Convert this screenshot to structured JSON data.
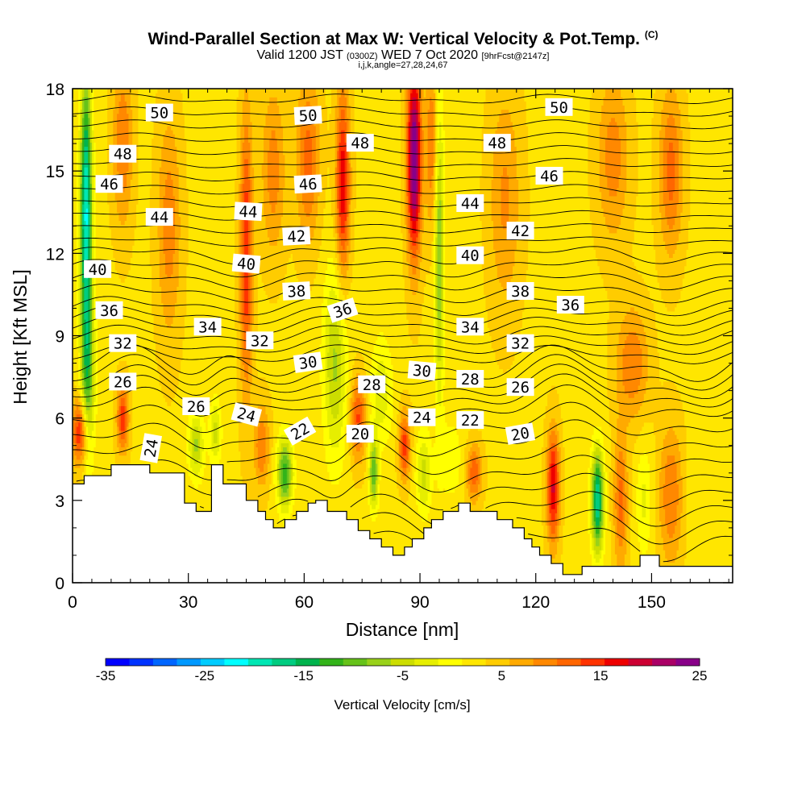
{
  "header": {
    "title": "Wind-Parallel Section at Max W: Vertical Velocity & Pot.Temp.",
    "title_mark": "(C)",
    "valid_prefix": "Valid 1200 JST",
    "valid_utc": "(0300Z)",
    "valid_date": "WED 7 Oct 2020",
    "forecast": "[9hrFcst@2147z]",
    "indices": "i,j,k,angle=27,28,24,67"
  },
  "chart_data": {
    "type": "heatmap",
    "xlabel": "Distance [nm]",
    "ylabel": "Height [Kft MSL]",
    "xlim": [
      0,
      171
    ],
    "ylim": [
      0,
      18
    ],
    "x_ticks": [
      0,
      30,
      60,
      90,
      120,
      150
    ],
    "y_ticks": [
      0,
      3,
      6,
      9,
      12,
      15,
      18
    ],
    "grid": false,
    "colorbar": {
      "label": "Vertical Velocity [cm/s]",
      "range": [
        -35,
        25
      ],
      "step": 2.5,
      "tick_values": [
        -35,
        -25,
        -15,
        -5,
        5,
        15,
        25
      ],
      "tick_labels": [
        "-35",
        "-25",
        "-15",
        "-5",
        "5",
        "15",
        "25"
      ],
      "colors": [
        "#0000ff",
        "#0033ff",
        "#0066ff",
        "#0099ff",
        "#00ccff",
        "#00ffff",
        "#00e6b3",
        "#00cc80",
        "#00b34d",
        "#33b31a",
        "#66c21a",
        "#99d11a",
        "#ccdd00",
        "#e6ee00",
        "#ffff00",
        "#ffe600",
        "#ffcc00",
        "#ffaa00",
        "#ff8800",
        "#ff6600",
        "#ff3300",
        "#ee0000",
        "#cc0033",
        "#aa0066",
        "#880088"
      ],
      "placement": "bottom"
    },
    "velocity_features": [
      {
        "x": 3.5,
        "z": 13.5,
        "value": -25,
        "wx": 1.5,
        "wz": 5
      },
      {
        "x": 4,
        "z": 7.5,
        "value": -12,
        "wx": 1.8,
        "wz": 3
      },
      {
        "x": 13,
        "z": 16,
        "value": 8,
        "wx": 2.5,
        "wz": 3
      },
      {
        "x": 2,
        "z": 5.5,
        "value": 14,
        "wx": 2,
        "wz": 1.2
      },
      {
        "x": 13,
        "z": 6,
        "value": 12,
        "wx": 1.5,
        "wz": 1.2
      },
      {
        "x": 25,
        "z": 13,
        "value": 7,
        "wx": 3,
        "wz": 4
      },
      {
        "x": 32,
        "z": 5,
        "value": -10,
        "wx": 2,
        "wz": 1.2
      },
      {
        "x": 37,
        "z": 5.5,
        "value": -8,
        "wx": 1.5,
        "wz": 1.2
      },
      {
        "x": 45,
        "z": 12,
        "value": 13,
        "wx": 1.6,
        "wz": 5
      },
      {
        "x": 49,
        "z": 5,
        "value": 8,
        "wx": 2,
        "wz": 1.5
      },
      {
        "x": 55,
        "z": 4,
        "value": -16,
        "wx": 2,
        "wz": 1.3
      },
      {
        "x": 52,
        "z": 15,
        "value": 7,
        "wx": 3,
        "wz": 3
      },
      {
        "x": 61,
        "z": 15.5,
        "value": 9,
        "wx": 3,
        "wz": 3
      },
      {
        "x": 68,
        "z": 8,
        "value": -10,
        "wx": 3,
        "wz": 3.5
      },
      {
        "x": 70,
        "z": 14.5,
        "value": 15,
        "wx": 1.8,
        "wz": 3.5
      },
      {
        "x": 74,
        "z": 6,
        "value": 11,
        "wx": 2,
        "wz": 1.5
      },
      {
        "x": 78,
        "z": 4,
        "value": -14,
        "wx": 1.2,
        "wz": 1.3
      },
      {
        "x": 80,
        "z": 7,
        "value": -6,
        "wx": 3,
        "wz": 2
      },
      {
        "x": 88.5,
        "z": 15.5,
        "value": 24,
        "wx": 1.8,
        "wz": 3.5
      },
      {
        "x": 86,
        "z": 5,
        "value": 12,
        "wx": 1.5,
        "wz": 1.2
      },
      {
        "x": 91,
        "z": 4,
        "value": -8,
        "wx": 2,
        "wz": 1.5
      },
      {
        "x": 95,
        "z": 12,
        "value": -12,
        "wx": 1.2,
        "wz": 5.5
      },
      {
        "x": 93,
        "z": 16,
        "value": 8,
        "wx": 1.5,
        "wz": 3
      },
      {
        "x": 98,
        "z": 4.5,
        "value": -4,
        "wx": 3,
        "wz": 1.5
      },
      {
        "x": 104,
        "z": 4,
        "value": 10,
        "wx": 2,
        "wz": 1
      },
      {
        "x": 112,
        "z": 14,
        "value": 6,
        "wx": 4,
        "wz": 4
      },
      {
        "x": 124.5,
        "z": 3.5,
        "value": 16,
        "wx": 1.6,
        "wz": 2
      },
      {
        "x": 136,
        "z": 3,
        "value": -22,
        "wx": 1.6,
        "wz": 1.8
      },
      {
        "x": 142,
        "z": 3,
        "value": 9,
        "wx": 1.8,
        "wz": 2.5
      },
      {
        "x": 148,
        "z": 3,
        "value": -5,
        "wx": 2,
        "wz": 2
      },
      {
        "x": 155,
        "z": 3.2,
        "value": 8,
        "wx": 3,
        "wz": 2.5
      },
      {
        "x": 162,
        "z": 3,
        "value": -2,
        "wx": 3,
        "wz": 2
      },
      {
        "x": 140,
        "z": 15.5,
        "value": 7,
        "wx": 4,
        "wz": 3
      },
      {
        "x": 155,
        "z": 15,
        "value": 9,
        "wx": 3,
        "wz": 3
      },
      {
        "x": 145,
        "z": 8,
        "value": 8,
        "wx": 4,
        "wz": 2
      }
    ],
    "terrain": {
      "x": [
        0,
        3,
        3,
        10,
        10,
        20,
        20,
        29,
        29,
        32,
        32,
        36,
        36,
        39,
        39,
        45,
        45,
        48,
        48,
        50,
        50,
        52,
        52,
        55,
        55,
        58,
        58,
        61,
        61,
        63,
        63,
        66,
        66,
        71,
        71,
        74,
        74,
        77,
        77,
        80,
        80,
        83,
        83,
        86,
        86,
        88,
        88,
        91,
        91,
        93,
        93,
        96,
        96,
        100,
        100,
        103,
        103,
        110,
        110,
        114,
        114,
        117,
        117,
        119,
        119,
        121,
        121,
        124,
        124,
        127,
        127,
        132,
        132,
        147,
        147,
        152,
        152,
        171
      ],
      "z": [
        3.6,
        3.6,
        3.9,
        3.9,
        4.3,
        4.3,
        4.0,
        4.0,
        2.9,
        2.9,
        2.6,
        2.6,
        4.3,
        4.3,
        3.6,
        3.6,
        3.0,
        3.0,
        2.6,
        2.6,
        2.3,
        2.3,
        2.0,
        2.0,
        2.3,
        2.3,
        2.6,
        2.6,
        2.9,
        2.9,
        3.0,
        3.0,
        2.6,
        2.6,
        2.3,
        2.3,
        1.9,
        1.9,
        1.6,
        1.6,
        1.3,
        1.3,
        1.0,
        1.0,
        1.3,
        1.3,
        1.6,
        1.6,
        2.0,
        2.0,
        2.3,
        2.3,
        2.6,
        2.6,
        2.9,
        2.9,
        2.6,
        2.6,
        2.3,
        2.3,
        2.0,
        2.0,
        1.6,
        1.6,
        1.3,
        1.3,
        1.0,
        1.0,
        0.7,
        0.7,
        0.3,
        0.3,
        0.6,
        0.6,
        1.0,
        1.0,
        0.6,
        0.6
      ]
    },
    "theta_contours": {
      "levels": [
        18,
        19,
        20,
        21,
        22,
        23,
        24,
        25,
        26,
        27,
        28,
        29,
        30,
        31,
        32,
        33,
        34,
        35,
        36,
        37,
        38,
        39,
        40,
        41,
        42,
        43,
        44,
        45,
        46,
        47,
        48,
        49,
        50,
        51,
        52
      ],
      "labels": [
        {
          "text": "50",
          "x": 22.5,
          "z": 17.1,
          "angle": 0
        },
        {
          "text": "50",
          "x": 61,
          "z": 17.0,
          "angle": -3
        },
        {
          "text": "50",
          "x": 126,
          "z": 17.3,
          "angle": 0
        },
        {
          "text": "48",
          "x": 13,
          "z": 15.6,
          "angle": 0
        },
        {
          "text": "48",
          "x": 74.5,
          "z": 16.0,
          "angle": 0
        },
        {
          "text": "48",
          "x": 110,
          "z": 16.0,
          "angle": 0
        },
        {
          "text": "46",
          "x": 9.5,
          "z": 14.5,
          "angle": 0
        },
        {
          "text": "46",
          "x": 61,
          "z": 14.5,
          "angle": -3
        },
        {
          "text": "46",
          "x": 123.5,
          "z": 14.8,
          "angle": 0
        },
        {
          "text": "44",
          "x": 22.5,
          "z": 13.3,
          "angle": 0
        },
        {
          "text": "44",
          "x": 45.5,
          "z": 13.5,
          "angle": 3
        },
        {
          "text": "44",
          "x": 103,
          "z": 13.8,
          "angle": 0
        },
        {
          "text": "42",
          "x": 58,
          "z": 12.6,
          "angle": -3
        },
        {
          "text": "42",
          "x": 116,
          "z": 12.8,
          "angle": 0
        },
        {
          "text": "40",
          "x": 6.5,
          "z": 11.4,
          "angle": 0
        },
        {
          "text": "40",
          "x": 45,
          "z": 11.6,
          "angle": 5
        },
        {
          "text": "40",
          "x": 103,
          "z": 11.9,
          "angle": 0
        },
        {
          "text": "38",
          "x": 58,
          "z": 10.6,
          "angle": -3
        },
        {
          "text": "38",
          "x": 116,
          "z": 10.6,
          "angle": 0
        },
        {
          "text": "36",
          "x": 9.5,
          "z": 9.9,
          "angle": 0
        },
        {
          "text": "36",
          "x": 70,
          "z": 9.9,
          "angle": -18
        },
        {
          "text": "36",
          "x": 129,
          "z": 10.1,
          "angle": 0
        },
        {
          "text": "34",
          "x": 35,
          "z": 9.3,
          "angle": 0
        },
        {
          "text": "34",
          "x": 103,
          "z": 9.3,
          "angle": 0
        },
        {
          "text": "32",
          "x": 13,
          "z": 8.7,
          "angle": 0
        },
        {
          "text": "32",
          "x": 48.5,
          "z": 8.8,
          "angle": 0
        },
        {
          "text": "32",
          "x": 116,
          "z": 8.7,
          "angle": 0
        },
        {
          "text": "30",
          "x": 61,
          "z": 8.0,
          "angle": -8
        },
        {
          "text": "30",
          "x": 90.5,
          "z": 7.7,
          "angle": 5
        },
        {
          "text": "28",
          "x": 77.5,
          "z": 7.2,
          "angle": 0
        },
        {
          "text": "28",
          "x": 103,
          "z": 7.4,
          "angle": 0
        },
        {
          "text": "26",
          "x": 13,
          "z": 7.3,
          "angle": 0
        },
        {
          "text": "26",
          "x": 32,
          "z": 6.4,
          "angle": 0
        },
        {
          "text": "26",
          "x": 116,
          "z": 7.1,
          "angle": 0
        },
        {
          "text": "24",
          "x": 45,
          "z": 6.1,
          "angle": 15
        },
        {
          "text": "24",
          "x": 90.5,
          "z": 6.0,
          "angle": 0
        },
        {
          "text": "24",
          "x": 20.5,
          "z": 4.9,
          "angle": -80
        },
        {
          "text": "22",
          "x": 59,
          "z": 5.5,
          "angle": -30
        },
        {
          "text": "22",
          "x": 103,
          "z": 5.9,
          "angle": 0
        },
        {
          "text": "20",
          "x": 74.5,
          "z": 5.4,
          "angle": 0
        },
        {
          "text": "20",
          "x": 116,
          "z": 5.4,
          "angle": -10
        }
      ]
    }
  }
}
